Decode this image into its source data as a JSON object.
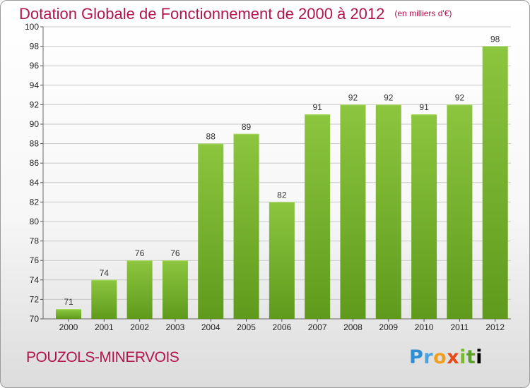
{
  "chart_data": {
    "type": "bar",
    "title": "Dotation Globale de Fonctionnement de 2000 à 2012",
    "unit": "(en milliers d'€)",
    "categories": [
      "2000",
      "2001",
      "2002",
      "2003",
      "2004",
      "2005",
      "2006",
      "2007",
      "2008",
      "2009",
      "2010",
      "2011",
      "2012"
    ],
    "values": [
      71,
      74,
      76,
      76,
      88,
      89,
      82,
      91,
      92,
      92,
      91,
      92,
      98
    ],
    "ylim": [
      70,
      100
    ],
    "yticks": [
      70,
      72,
      74,
      76,
      78,
      80,
      82,
      84,
      86,
      88,
      90,
      92,
      94,
      96,
      98,
      100
    ],
    "grid": true,
    "legend": "none",
    "bar_color": "#8cc63f",
    "bar_color_dark": "#5f9a1c"
  },
  "footer": {
    "commune": "POUZOLS-MINERVOIS",
    "logo_letters": [
      "P",
      "r",
      "o",
      "x",
      "i",
      "t",
      "i"
    ]
  },
  "colors": {
    "title": "#b0154d",
    "grid": "#c8c8c8"
  }
}
